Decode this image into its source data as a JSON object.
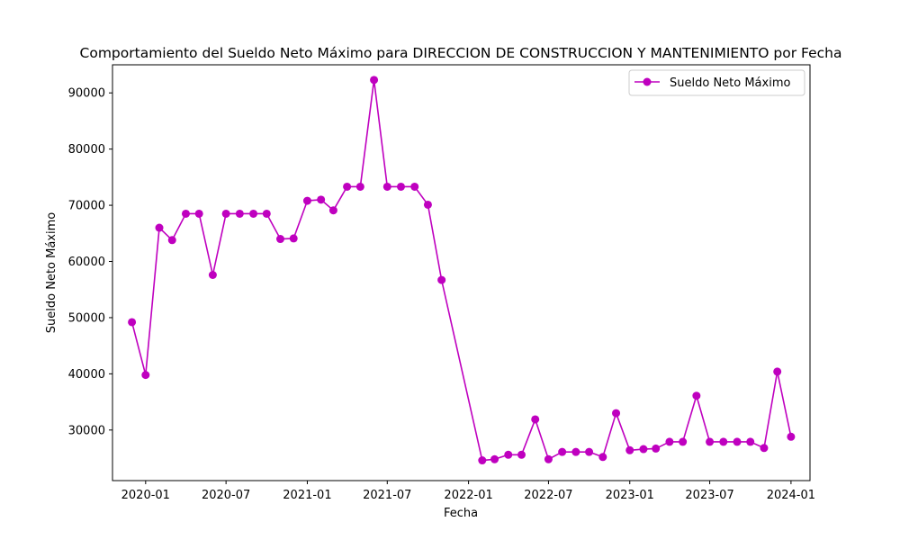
{
  "chart_data": {
    "type": "line",
    "title": "Comportamiento del Sueldo Neto Máximo para DIRECCION DE CONSTRUCCION Y MANTENIMIENTO por Fecha",
    "xlabel": "Fecha",
    "ylabel": "Sueldo Neto Máximo",
    "x_ticks": [
      "2020-01",
      "2020-07",
      "2021-01",
      "2021-07",
      "2022-01",
      "2022-07",
      "2023-01",
      "2023-07",
      "2024-01"
    ],
    "y_ticks": [
      "30000",
      "40000",
      "50000",
      "60000",
      "70000",
      "80000",
      "90000"
    ],
    "xlim": [
      "2019-10-18",
      "2024-02-13"
    ],
    "ylim": [
      21000,
      95000
    ],
    "grid": false,
    "legend_position": "top-right",
    "color": "#bf00bf",
    "series": [
      {
        "name": "Sueldo Neto Máximo",
        "x": [
          "2019-12-01",
          "2020-01-01",
          "2020-02-01",
          "2020-03-01",
          "2020-04-01",
          "2020-05-01",
          "2020-06-01",
          "2020-07-01",
          "2020-08-01",
          "2020-09-01",
          "2020-10-01",
          "2020-11-01",
          "2020-12-01",
          "2021-01-01",
          "2021-02-01",
          "2021-03-01",
          "2021-04-01",
          "2021-05-01",
          "2021-06-01",
          "2021-07-01",
          "2021-08-01",
          "2021-09-01",
          "2021-10-01",
          "2021-11-01",
          "2022-02-01",
          "2022-03-01",
          "2022-04-01",
          "2022-05-01",
          "2022-06-01",
          "2022-07-01",
          "2022-08-01",
          "2022-09-01",
          "2022-10-01",
          "2022-11-01",
          "2022-12-01",
          "2023-01-01",
          "2023-02-01",
          "2023-03-01",
          "2023-04-01",
          "2023-05-01",
          "2023-06-01",
          "2023-07-01",
          "2023-08-01",
          "2023-09-01",
          "2023-10-01",
          "2023-11-01",
          "2023-12-01",
          "2024-01-01"
        ],
        "values": [
          49200,
          39800,
          66000,
          63800,
          68500,
          68500,
          57600,
          68500,
          68500,
          68500,
          68500,
          64000,
          64100,
          70800,
          71000,
          69100,
          73300,
          73300,
          92300,
          73300,
          73300,
          73300,
          70100,
          56700,
          24600,
          24800,
          25600,
          25600,
          31900,
          24800,
          26100,
          26100,
          26100,
          25200,
          33000,
          26400,
          26600,
          26700,
          27900,
          27900,
          36100,
          27900,
          27900,
          27900,
          27900,
          26800,
          40400,
          28800
        ]
      }
    ]
  }
}
